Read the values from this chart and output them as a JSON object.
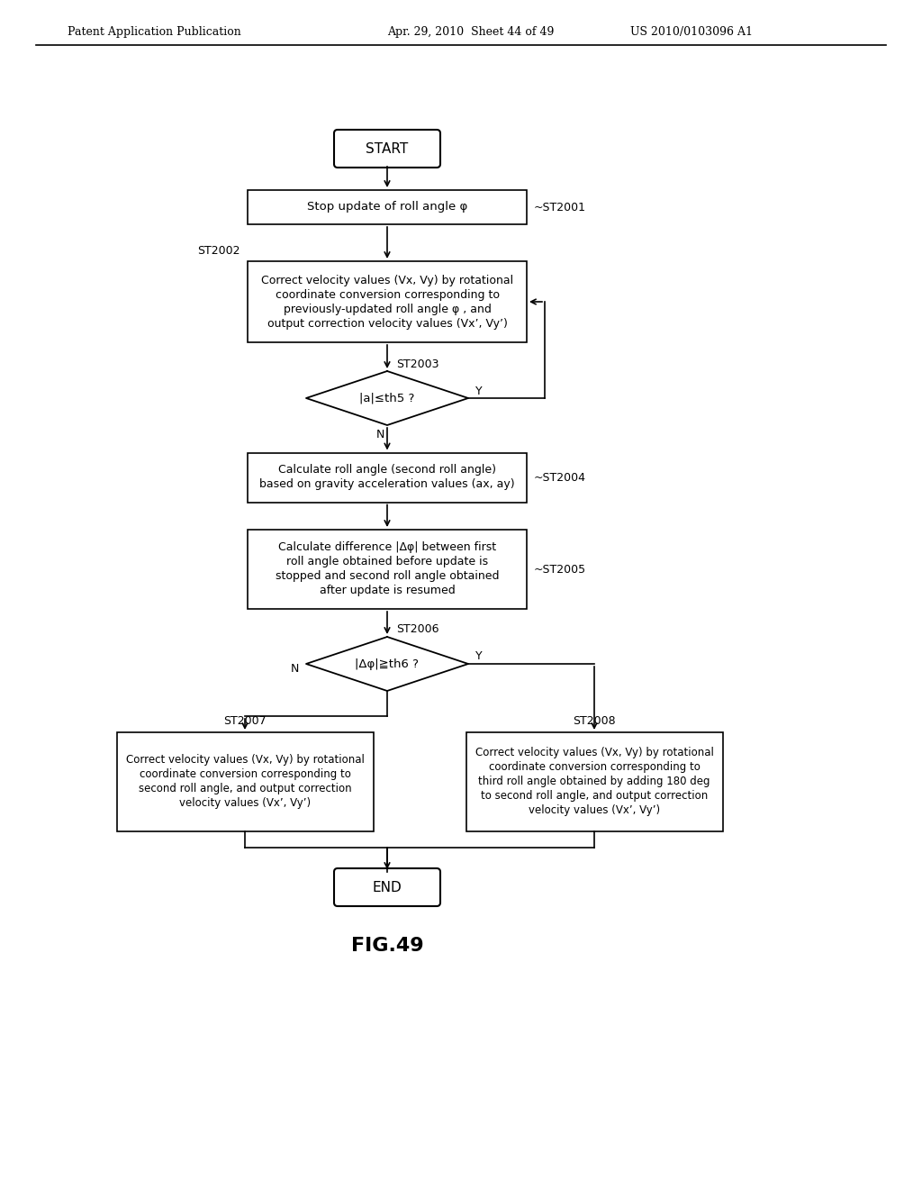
{
  "header_left": "Patent Application Publication",
  "header_mid": "Apr. 29, 2010  Sheet 44 of 49",
  "header_right": "US 2010/0103096 A1",
  "figure_label": "FIG.49",
  "bg_color": "#ffffff",
  "box_color": "#000000",
  "text_color": "#000000"
}
